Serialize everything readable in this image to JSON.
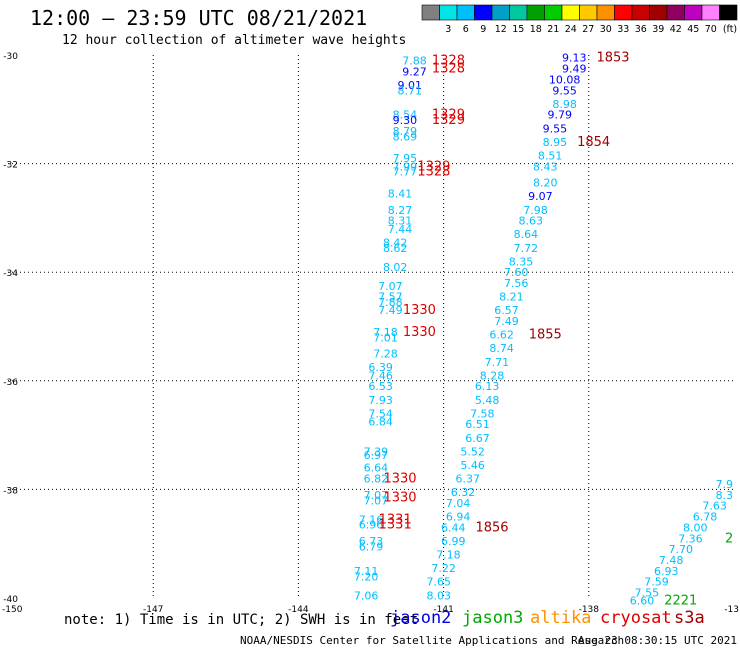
{
  "header": {
    "title": "12:00 — 23:59 UTC 08/21/2021",
    "subtitle": "12 hour collection of altimeter wave heights"
  },
  "legend": {
    "colors": [
      "#808080",
      "#00e5e5",
      "#00bfff",
      "#0000ff",
      "#00a0c8",
      "#00c8a0",
      "#00a000",
      "#00cc00",
      "#ffff00",
      "#ffc800",
      "#ff9000",
      "#ff0000",
      "#c80000",
      "#a00000",
      "#900060",
      "#c000c0",
      "#ff80ff",
      "#000000"
    ],
    "labels": [
      "3",
      "6",
      "9",
      "12",
      "15",
      "18",
      "21",
      "24",
      "27",
      "30",
      "33",
      "36",
      "39",
      "42",
      "45",
      "70"
    ],
    "unit": "(ft)"
  },
  "axes": {
    "lat_labels": [
      "-30",
      "-32",
      "-34",
      "-36",
      "-38",
      "-40"
    ],
    "lon_labels": [
      "-150",
      "-147",
      "-144",
      "-141",
      "-138",
      "-13"
    ]
  },
  "footer": {
    "note": "note: 1) Time is in UTC; 2) SWH is in feet",
    "credit": "NOAA/NESDIS Center for Satellite Applications and Research",
    "timestamp": "Aug 23 08:30:15 UTC 2021"
  },
  "satellites": [
    {
      "name": "jason2",
      "color": "#0000dd"
    },
    {
      "name": "jason3",
      "color": "#00aa00"
    },
    {
      "name": "altika",
      "color": "#ff9000"
    },
    {
      "name": "cryosat",
      "color": "#dd0000"
    },
    {
      "name": "s3a",
      "color": "#a00000"
    }
  ],
  "track_labels": [
    {
      "text": "7.88",
      "color": "#00bfff",
      "lat": -30.1,
      "lon": -141.6
    },
    {
      "text": "9.27",
      "color": "#0000ff",
      "lat": -30.3,
      "lon": -141.6
    },
    {
      "text": "9.01",
      "color": "#0000ff",
      "lat": -30.55,
      "lon": -141.7
    },
    {
      "text": "8.71",
      "color": "#00bfff",
      "lat": -30.65,
      "lon": -141.7
    },
    {
      "text": "8.54",
      "color": "#00bfff",
      "lat": -31.1,
      "lon": -141.8
    },
    {
      "text": "9.30",
      "color": "#0000ff",
      "lat": -31.2,
      "lon": -141.8
    },
    {
      "text": "8.79",
      "color": "#00bfff",
      "lat": -31.4,
      "lon": -141.8
    },
    {
      "text": "8.69",
      "color": "#00bfff",
      "lat": -31.5,
      "lon": -141.8
    },
    {
      "text": "7.95",
      "color": "#00bfff",
      "lat": -31.9,
      "lon": -141.8
    },
    {
      "text": "7.99",
      "color": "#00bfff",
      "lat": -32.05,
      "lon": -141.8
    },
    {
      "text": "7.77",
      "color": "#00bfff",
      "lat": -32.15,
      "lon": -141.8
    },
    {
      "text": "8.41",
      "color": "#00bfff",
      "lat": -32.55,
      "lon": -141.9
    },
    {
      "text": "8.27",
      "color": "#00bfff",
      "lat": -32.85,
      "lon": -141.9
    },
    {
      "text": "8.31",
      "color": "#00bfff",
      "lat": -33.05,
      "lon": -141.9
    },
    {
      "text": "7.44",
      "color": "#00bfff",
      "lat": -33.2,
      "lon": -141.9
    },
    {
      "text": "8.42",
      "color": "#00bfff",
      "lat": -33.45,
      "lon": -142.0
    },
    {
      "text": "8.62",
      "color": "#00bfff",
      "lat": -33.55,
      "lon": -142.0
    },
    {
      "text": "8.02",
      "color": "#00bfff",
      "lat": -33.9,
      "lon": -142.0
    },
    {
      "text": "7.07",
      "color": "#00bfff",
      "lat": -34.25,
      "lon": -142.1
    },
    {
      "text": "7.57",
      "color": "#00bfff",
      "lat": -34.45,
      "lon": -142.1
    },
    {
      "text": "7.88",
      "color": "#00bfff",
      "lat": -34.55,
      "lon": -142.1
    },
    {
      "text": "7.49",
      "color": "#00bfff",
      "lat": -34.7,
      "lon": -142.1
    },
    {
      "text": "7.18",
      "color": "#00bfff",
      "lat": -35.1,
      "lon": -142.2
    },
    {
      "text": "7.01",
      "color": "#00bfff",
      "lat": -35.2,
      "lon": -142.2
    },
    {
      "text": "7.28",
      "color": "#00bfff",
      "lat": -35.5,
      "lon": -142.2
    },
    {
      "text": "6.39",
      "color": "#00bfff",
      "lat": -35.75,
      "lon": -142.3
    },
    {
      "text": "7.46",
      "color": "#00bfff",
      "lat": -35.9,
      "lon": -142.3
    },
    {
      "text": "6.53",
      "color": "#00bfff",
      "lat": -36.1,
      "lon": -142.3
    },
    {
      "text": "7.93",
      "color": "#00bfff",
      "lat": -36.35,
      "lon": -142.3
    },
    {
      "text": "7.54",
      "color": "#00bfff",
      "lat": -36.6,
      "lon": -142.3
    },
    {
      "text": "6.84",
      "color": "#00bfff",
      "lat": -36.75,
      "lon": -142.3
    },
    {
      "text": "7.39",
      "color": "#00bfff",
      "lat": -37.3,
      "lon": -142.4
    },
    {
      "text": "6.97",
      "color": "#00bfff",
      "lat": -37.37,
      "lon": -142.4
    },
    {
      "text": "6.64",
      "color": "#00bfff",
      "lat": -37.6,
      "lon": -142.4
    },
    {
      "text": "6.82",
      "color": "#00bfff",
      "lat": -37.8,
      "lon": -142.4
    },
    {
      "text": "7.07",
      "color": "#00bfff",
      "lat": -38.1,
      "lon": -142.4
    },
    {
      "text": "7.07",
      "color": "#00bfff",
      "lat": -38.2,
      "lon": -142.4
    },
    {
      "text": "7.16",
      "color": "#00bfff",
      "lat": -38.55,
      "lon": -142.5
    },
    {
      "text": "6.96",
      "color": "#00bfff",
      "lat": -38.65,
      "lon": -142.5
    },
    {
      "text": "6.73",
      "color": "#00bfff",
      "lat": -38.95,
      "lon": -142.5
    },
    {
      "text": "6.79",
      "color": "#00bfff",
      "lat": -39.05,
      "lon": -142.5
    },
    {
      "text": "7.11",
      "color": "#00bfff",
      "lat": -39.5,
      "lon": -142.6
    },
    {
      "text": "7.20",
      "color": "#00bfff",
      "lat": -39.6,
      "lon": -142.6
    },
    {
      "text": "7.06",
      "color": "#00bfff",
      "lat": -39.95,
      "lon": -142.6
    },
    {
      "text": "1328",
      "color": "#dd0000",
      "lat": -30.1,
      "lon": -140.9
    },
    {
      "text": "1328",
      "color": "#dd0000",
      "lat": -30.25,
      "lon": -140.9
    },
    {
      "text": "1329",
      "color": "#dd0000",
      "lat": -31.1,
      "lon": -140.9
    },
    {
      "text": "1329",
      "color": "#dd0000",
      "lat": -31.2,
      "lon": -140.9
    },
    {
      "text": "1329",
      "color": "#dd0000",
      "lat": -32.05,
      "lon": -141.2
    },
    {
      "text": "1328",
      "color": "#dd0000",
      "lat": -32.15,
      "lon": -141.2
    },
    {
      "text": "1330",
      "color": "#dd0000",
      "lat": -34.7,
      "lon": -141.5
    },
    {
      "text": "1330",
      "color": "#dd0000",
      "lat": -35.1,
      "lon": -141.5
    },
    {
      "text": "1330",
      "color": "#dd0000",
      "lat": -37.8,
      "lon": -141.9
    },
    {
      "text": "1330",
      "color": "#dd0000",
      "lat": -38.15,
      "lon": -141.9
    },
    {
      "text": "1331",
      "color": "#dd0000",
      "lat": -38.55,
      "lon": -142.0
    },
    {
      "text": "1331",
      "color": "#dd0000",
      "lat": -38.65,
      "lon": -142.0
    },
    {
      "text": "9.13",
      "color": "#0000ff",
      "lat": -30.05,
      "lon": -138.3
    },
    {
      "text": "9.49",
      "color": "#0000ff",
      "lat": -30.25,
      "lon": -138.3
    },
    {
      "text": "10.08",
      "color": "#0000ff",
      "lat": -30.45,
      "lon": -138.5
    },
    {
      "text": "9.55",
      "color": "#0000ff",
      "lat": -30.65,
      "lon": -138.5
    },
    {
      "text": "8.98",
      "color": "#00bfff",
      "lat": -30.9,
      "lon": -138.5
    },
    {
      "text": "9.79",
      "color": "#0000ff",
      "lat": -31.1,
      "lon": -138.6
    },
    {
      "text": "9.55",
      "color": "#0000ff",
      "lat": -31.35,
      "lon": -138.7
    },
    {
      "text": "8.95",
      "color": "#00bfff",
      "lat": -31.6,
      "lon": -138.7
    },
    {
      "text": "8.51",
      "color": "#00bfff",
      "lat": -31.85,
      "lon": -138.8
    },
    {
      "text": "8.43",
      "color": "#00bfff",
      "lat": -32.05,
      "lon": -138.9
    },
    {
      "text": "8.20",
      "color": "#00bfff",
      "lat": -32.35,
      "lon": -138.9
    },
    {
      "text": "9.07",
      "color": "#0000ff",
      "lat": -32.6,
      "lon": -139.0
    },
    {
      "text": "7.98",
      "color": "#00bfff",
      "lat": -32.85,
      "lon": -139.1
    },
    {
      "text": "8.63",
      "color": "#00bfff",
      "lat": -33.05,
      "lon": -139.2
    },
    {
      "text": "8.64",
      "color": "#00bfff",
      "lat": -33.3,
      "lon": -139.3
    },
    {
      "text": "7.72",
      "color": "#00bfff",
      "lat": -33.55,
      "lon": -139.3
    },
    {
      "text": "8.35",
      "color": "#00bfff",
      "lat": -33.8,
      "lon": -139.4
    },
    {
      "text": "7.60",
      "color": "#00bfff",
      "lat": -34.0,
      "lon": -139.5
    },
    {
      "text": "7.56",
      "color": "#00bfff",
      "lat": -34.2,
      "lon": -139.5
    },
    {
      "text": "8.21",
      "color": "#00bfff",
      "lat": -34.45,
      "lon": -139.6
    },
    {
      "text": "6.57",
      "color": "#00bfff",
      "lat": -34.7,
      "lon": -139.7
    },
    {
      "text": "7.49",
      "color": "#00bfff",
      "lat": -34.9,
      "lon": -139.7
    },
    {
      "text": "6.62",
      "color": "#00bfff",
      "lat": -35.15,
      "lon": -139.8
    },
    {
      "text": "8.74",
      "color": "#00bfff",
      "lat": -35.4,
      "lon": -139.8
    },
    {
      "text": "7.71",
      "color": "#00bfff",
      "lat": -35.65,
      "lon": -139.9
    },
    {
      "text": "8.28",
      "color": "#00bfff",
      "lat": -35.9,
      "lon": -140.0
    },
    {
      "text": "6.13",
      "color": "#00bfff",
      "lat": -36.1,
      "lon": -140.1
    },
    {
      "text": "5.48",
      "color": "#00bfff",
      "lat": -36.35,
      "lon": -140.1
    },
    {
      "text": "7.58",
      "color": "#00bfff",
      "lat": -36.6,
      "lon": -140.2
    },
    {
      "text": "6.51",
      "color": "#00bfff",
      "lat": -36.8,
      "lon": -140.3
    },
    {
      "text": "6.67",
      "color": "#00bfff",
      "lat": -37.05,
      "lon": -140.3
    },
    {
      "text": "5.52",
      "color": "#00bfff",
      "lat": -37.3,
      "lon": -140.4
    },
    {
      "text": "5.46",
      "color": "#00bfff",
      "lat": -37.55,
      "lon": -140.4
    },
    {
      "text": "6.37",
      "color": "#00bfff",
      "lat": -37.8,
      "lon": -140.5
    },
    {
      "text": "6.32",
      "color": "#00bfff",
      "lat": -38.05,
      "lon": -140.6
    },
    {
      "text": "7.04",
      "color": "#00bfff",
      "lat": -38.25,
      "lon": -140.7
    },
    {
      "text": "6.94",
      "color": "#00bfff",
      "lat": -38.5,
      "lon": -140.7
    },
    {
      "text": "6.44",
      "color": "#00bfff",
      "lat": -38.7,
      "lon": -140.8
    },
    {
      "text": "6.99",
      "color": "#00bfff",
      "lat": -38.95,
      "lon": -140.8
    },
    {
      "text": "7.18",
      "color": "#00bfff",
      "lat": -39.2,
      "lon": -140.9
    },
    {
      "text": "7.22",
      "color": "#00bfff",
      "lat": -39.45,
      "lon": -141.0
    },
    {
      "text": "7.65",
      "color": "#00bfff",
      "lat": -39.7,
      "lon": -141.1
    },
    {
      "text": "8.03",
      "color": "#00bfff",
      "lat": -39.95,
      "lon": -141.1
    },
    {
      "text": "1853",
      "color": "#a00000",
      "lat": -30.05,
      "lon": -137.5
    },
    {
      "text": "1854",
      "color": "#a00000",
      "lat": -31.6,
      "lon": -137.9
    },
    {
      "text": "1855",
      "color": "#a00000",
      "lat": -35.15,
      "lon": -138.9
    },
    {
      "text": "1856",
      "color": "#a00000",
      "lat": -38.7,
      "lon": -140.0
    },
    {
      "text": "7.9",
      "color": "#00bfff",
      "lat": -37.9,
      "lon": -135.2
    },
    {
      "text": "8.3",
      "color": "#00bfff",
      "lat": -38.1,
      "lon": -135.2
    },
    {
      "text": "7.63",
      "color": "#00bfff",
      "lat": -38.3,
      "lon": -135.4
    },
    {
      "text": "6.78",
      "color": "#00bfff",
      "lat": -38.5,
      "lon": -135.6
    },
    {
      "text": "8.00",
      "color": "#00bfff",
      "lat": -38.7,
      "lon": -135.8
    },
    {
      "text": "7.36",
      "color": "#00bfff",
      "lat": -38.9,
      "lon": -135.9
    },
    {
      "text": "7.70",
      "color": "#00bfff",
      "lat": -39.1,
      "lon": -136.1
    },
    {
      "text": "7.48",
      "color": "#00bfff",
      "lat": -39.3,
      "lon": -136.3
    },
    {
      "text": "6.93",
      "color": "#00bfff",
      "lat": -39.5,
      "lon": -136.4
    },
    {
      "text": "7.59",
      "color": "#00bfff",
      "lat": -39.7,
      "lon": -136.6
    },
    {
      "text": "7.55",
      "color": "#00bfff",
      "lat": -39.9,
      "lon": -136.8
    },
    {
      "text": "6.60",
      "color": "#00bfff",
      "lat": -40.05,
      "lon": -136.9
    },
    {
      "text": "2",
      "color": "#00aa00",
      "lat": -38.9,
      "lon": -135.1
    },
    {
      "text": "2221",
      "color": "#00aa00",
      "lat": -40.05,
      "lon": -136.1
    }
  ]
}
